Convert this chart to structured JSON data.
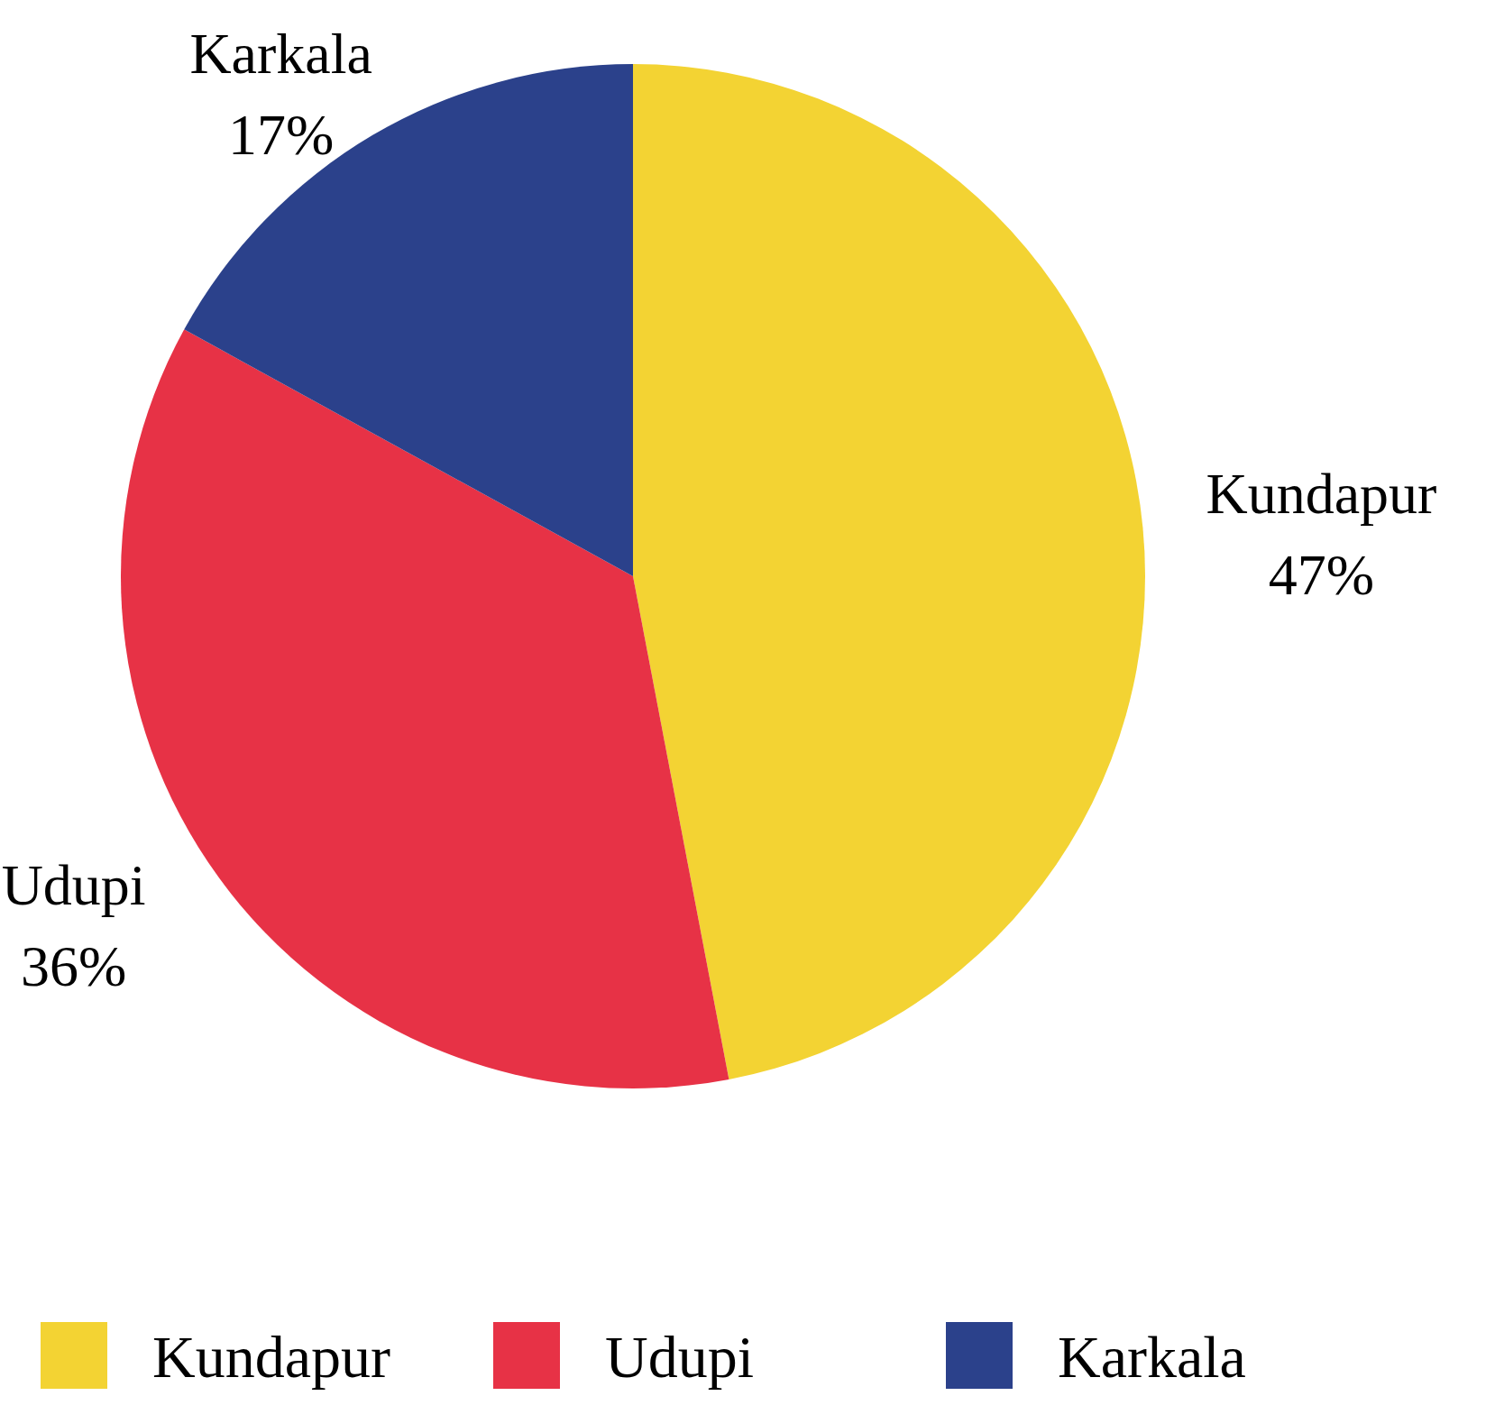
{
  "chart_data": {
    "type": "pie",
    "categories": [
      "Kundapur",
      "Udupi",
      "Karkala"
    ],
    "values": [
      47,
      36,
      17
    ],
    "colors": [
      "#f3d333",
      "#e73246",
      "#2b418b"
    ],
    "value_labels": [
      "47%",
      "36%",
      "17%"
    ],
    "legend": "bottom"
  }
}
